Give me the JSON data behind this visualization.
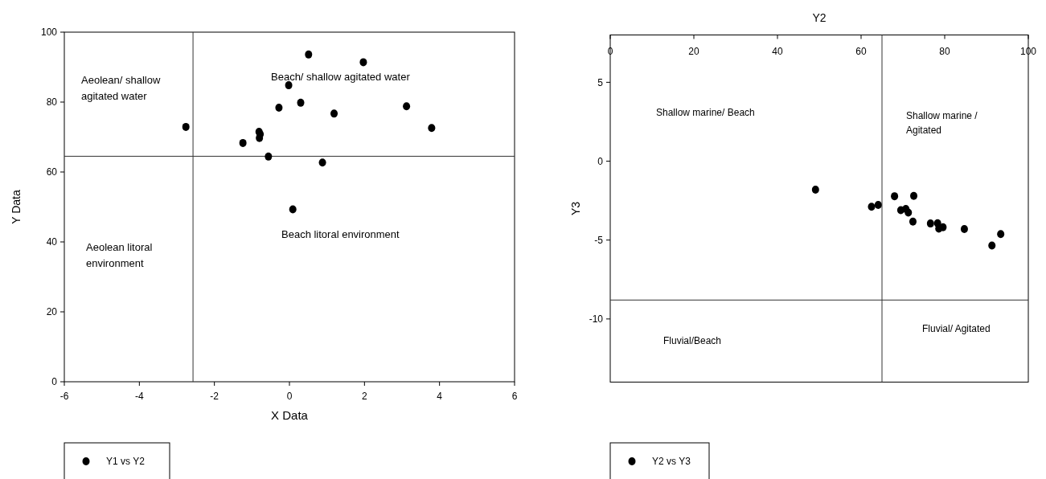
{
  "chart_data": [
    {
      "type": "scatter",
      "xlabel": "X Data",
      "ylabel": "Y Data",
      "xlim": [
        -6,
        6
      ],
      "xticks": [
        -6,
        -4,
        -2,
        0,
        2,
        4,
        6
      ],
      "ylim": [
        0,
        100
      ],
      "yticks": [
        0,
        20,
        40,
        60,
        80,
        100
      ],
      "legend": "bottom left",
      "marker": "circle",
      "series": [
        {
          "name": "Y1 vs Y2",
          "color": "#000000",
          "x": [
            -2.76,
            -1.24,
            -0.81,
            -0.78,
            -0.8,
            -0.56,
            -0.28,
            -0.02,
            0.09,
            0.3,
            0.51,
            0.88,
            1.19,
            1.97,
            3.12,
            3.79
          ],
          "values": [
            72.9,
            68.3,
            71.5,
            70.8,
            69.7,
            64.4,
            78.4,
            84.8,
            49.3,
            79.8,
            93.6,
            62.7,
            76.7,
            91.4,
            78.8,
            72.6
          ]
        }
      ],
      "ref_lines": [
        {
          "axis": "x",
          "value": -2.57
        },
        {
          "axis": "y",
          "value": 64.5
        }
      ],
      "annotations": [
        "Beach/ shallow agitated water",
        "Aeolean/ shallow agitated water",
        "Aeolean litoral environment",
        "Beach litoral environment"
      ]
    },
    {
      "type": "scatter",
      "xlabel": "Y2",
      "ylabel": "Y3",
      "xlim": [
        0,
        100
      ],
      "xticks": [
        0,
        20,
        40,
        60,
        80,
        100
      ],
      "ylim": [
        -14,
        8
      ],
      "yticks": [
        -10,
        -5,
        0,
        5
      ],
      "legend": "bottom left",
      "marker": "circle",
      "series": [
        {
          "name": "Y2 vs Y3",
          "color": "#000000",
          "x": [
            49.1,
            62.5,
            64.1,
            68.0,
            69.5,
            70.7,
            71.3,
            72.6,
            72.4,
            76.6,
            78.3,
            78.6,
            79.6,
            84.7,
            91.3,
            93.4
          ],
          "values": [
            -1.81,
            -2.89,
            -2.77,
            -2.22,
            -3.1,
            -3.03,
            -3.26,
            -2.2,
            -3.83,
            -3.95,
            -3.93,
            -4.28,
            -4.19,
            -4.3,
            -5.35,
            -4.62
          ]
        }
      ],
      "ref_lines": [
        {
          "axis": "x",
          "value": 65.0
        },
        {
          "axis": "y",
          "value": -8.8
        }
      ],
      "annotations": [
        "Shallow marine/ Beach",
        "Shallow marine / Agitated",
        "Fluvial/Beach",
        "Fluvial/ Agitated"
      ]
    }
  ]
}
